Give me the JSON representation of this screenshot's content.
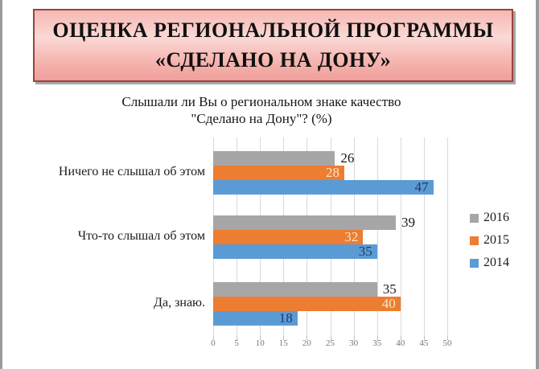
{
  "slide": {
    "background": "#FFFFFF",
    "frame_border_color": "#9B9B9B"
  },
  "title_banner": {
    "line1": "ОЦЕНКА РЕГИОНАЛЬНОЙ ПРОГРАММЫ",
    "line2": "«СДЕЛАНО НА ДОНУ»",
    "border_color": "#99423E",
    "fill_top": "#F5B7B3",
    "fill_mid": "#FBD9D5",
    "fill_bottom": "#EF9F9B",
    "text_color": "#111111"
  },
  "chart_data": {
    "type": "bar",
    "orientation": "horizontal",
    "title_line1": "Слышали ли Вы о региональном знаке качество",
    "title_line2": "\"Сделано на Дону\"? (%)",
    "categories": [
      "Ничего не слышал об этом",
      "Что-то слышал об этом",
      "Да, знаю."
    ],
    "series": [
      {
        "name": "2016",
        "color": "#A6A6A6",
        "values": [
          26,
          39,
          35
        ],
        "label_position": "outside",
        "label_color": "#1A1A1A"
      },
      {
        "name": "2015",
        "color": "#ED7D31",
        "values": [
          28,
          32,
          40
        ],
        "label_position": "inside",
        "label_color": "#F6E8CC"
      },
      {
        "name": "2014",
        "color": "#5B9BD5",
        "values": [
          47,
          35,
          18
        ],
        "label_position": "inside",
        "label_color": "#1F3864"
      }
    ],
    "xlim": [
      0,
      50
    ],
    "x_ticks": [
      0,
      5,
      10,
      15,
      20,
      25,
      30,
      35,
      40,
      45,
      50
    ],
    "grid": true,
    "gridline_color": "#D9D9D9",
    "tick_label_color": "#767676",
    "legend_position": "right"
  }
}
